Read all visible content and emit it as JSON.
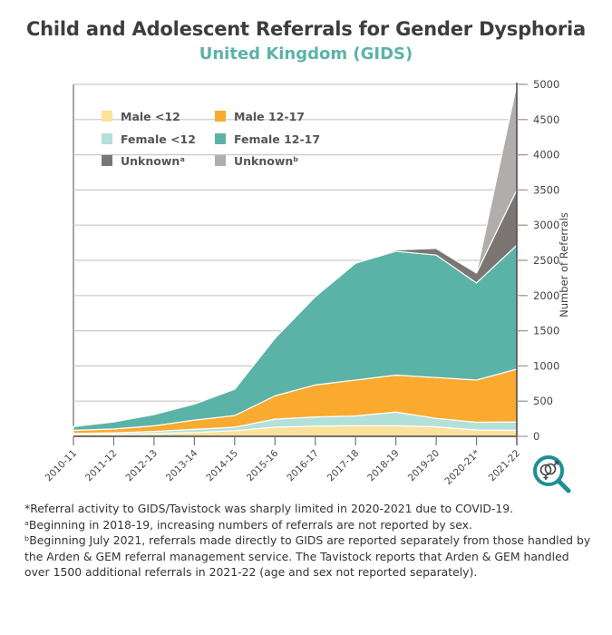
{
  "chart_data": {
    "type": "area",
    "stacked": true,
    "title": "Child and Adolescent Referrals for Gender Dysphoria",
    "subtitle": "United Kingdom (GIDS)",
    "xlabel": "",
    "ylabel": "Number of Referrals",
    "ylim": [
      0,
      5000
    ],
    "yticks": [
      0,
      500,
      1000,
      1500,
      2000,
      2500,
      3000,
      3500,
      4000,
      4500,
      5000
    ],
    "grid": true,
    "legend_position": "top-left",
    "categories": [
      "2010-11",
      "2011-12",
      "2012-13",
      "2013-14",
      "2014-15",
      "2015-16",
      "2016-17",
      "2017-18",
      "2018-19",
      "2019-20",
      "2020-21*",
      "2021-22"
    ],
    "series": [
      {
        "name": "Male <12",
        "color": "#fbe29b",
        "values": [
          25,
          30,
          40,
          55,
          80,
          130,
          145,
          150,
          150,
          135,
          90,
          85
        ]
      },
      {
        "name": "Female <12",
        "color": "#b4e0da",
        "values": [
          15,
          20,
          30,
          45,
          50,
          115,
          130,
          140,
          195,
          120,
          110,
          120
        ]
      },
      {
        "name": "Male 12-17",
        "color": "#f9aa2f",
        "values": [
          45,
          55,
          80,
          130,
          165,
          330,
          455,
          510,
          525,
          580,
          600,
          750
        ]
      },
      {
        "name": "Female 12-17",
        "color": "#5bb3a7",
        "values": [
          55,
          100,
          160,
          230,
          375,
          820,
          1255,
          1660,
          1760,
          1740,
          1380,
          1760
        ]
      },
      {
        "name": "Unknownᵃ",
        "color": "#7b7674",
        "values": [
          0,
          0,
          0,
          0,
          0,
          0,
          0,
          0,
          20,
          95,
          140,
          785
        ]
      },
      {
        "name": "Unknownᵇ",
        "color": "#b0adac",
        "values": [
          0,
          0,
          0,
          0,
          0,
          0,
          0,
          0,
          0,
          0,
          0,
          1500
        ]
      }
    ]
  },
  "legend": {
    "items": [
      {
        "label": "Male <12",
        "color": "#fbe29b"
      },
      {
        "label": "Male 12-17",
        "color": "#f9aa2f"
      },
      {
        "label": "Female <12",
        "color": "#b4e0da"
      },
      {
        "label": "Female 12-17",
        "color": "#5bb3a7"
      },
      {
        "label": "Unknownᵃ",
        "color": "#7b7674"
      },
      {
        "label": "Unknownᵇ",
        "color": "#b0adac"
      }
    ]
  },
  "footnotes": [
    "*Referral activity to GIDS/Tavistock was sharply limited in 2020-2021 due to COVID-19.",
    "ᵃBeginning in 2018-19, increasing numbers of referrals are not reported by sex.",
    "ᵇBeginning July 2021, referrals made directly to GIDS are reported separately from those handled by the Arden & GEM referral management service. The Tavistock reports that Arden & GEM handled over 1500 additional referrals in 2021-22 (age and sex not reported separately)."
  ],
  "icon": "gender-magnifier-icon",
  "colors": {
    "accent": "#5bb3a7",
    "icon": "#1f8e96",
    "grid": "#c9c9c9",
    "axis": "#555555"
  }
}
